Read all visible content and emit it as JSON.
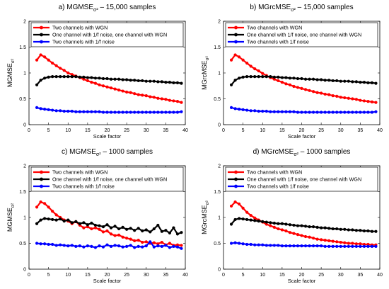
{
  "chart_data": [
    {
      "type": "line",
      "title": "a) MGMSE",
      "title_sub": "σ²",
      "title_rest": " – 15,000 samples",
      "xlabel": "Scale factor",
      "ylabel": "MGMSE",
      "ylabel_sub": "σ²",
      "xlim": [
        0,
        40
      ],
      "ylim": [
        0,
        2
      ],
      "xticks": [
        "0",
        "5",
        "10",
        "15",
        "20",
        "25",
        "30",
        "35",
        "40"
      ],
      "yticks": [
        "0",
        "0.5",
        "1",
        "1.5",
        "2"
      ],
      "legend_position": "top",
      "x": [
        2,
        3,
        4,
        5,
        6,
        7,
        8,
        9,
        10,
        11,
        12,
        13,
        14,
        15,
        16,
        17,
        18,
        19,
        20,
        21,
        22,
        23,
        24,
        25,
        26,
        27,
        28,
        29,
        30,
        31,
        32,
        33,
        34,
        35,
        36,
        37,
        38,
        39
      ],
      "series": [
        {
          "name": "Two channels with WGN",
          "color": "#ff0000",
          "values": [
            1.25,
            1.35,
            1.31,
            1.25,
            1.19,
            1.14,
            1.09,
            1.05,
            1.0,
            0.97,
            0.94,
            0.91,
            0.88,
            0.85,
            0.82,
            0.8,
            0.77,
            0.75,
            0.73,
            0.71,
            0.69,
            0.67,
            0.65,
            0.63,
            0.62,
            0.6,
            0.58,
            0.57,
            0.56,
            0.54,
            0.53,
            0.51,
            0.5,
            0.49,
            0.47,
            0.46,
            0.45,
            0.43
          ]
        },
        {
          "name": "One channel with 1/f noise, one channel with WGN",
          "color": "#000000",
          "values": [
            0.77,
            0.86,
            0.9,
            0.92,
            0.93,
            0.93,
            0.93,
            0.93,
            0.93,
            0.93,
            0.93,
            0.92,
            0.92,
            0.91,
            0.91,
            0.9,
            0.9,
            0.89,
            0.89,
            0.88,
            0.88,
            0.88,
            0.87,
            0.87,
            0.86,
            0.86,
            0.85,
            0.85,
            0.84,
            0.84,
            0.84,
            0.83,
            0.83,
            0.82,
            0.82,
            0.81,
            0.81,
            0.8
          ]
        },
        {
          "name": "Two channels with 1/f noise",
          "color": "#0000ff",
          "values": [
            0.33,
            0.31,
            0.3,
            0.29,
            0.28,
            0.27,
            0.27,
            0.26,
            0.26,
            0.26,
            0.25,
            0.25,
            0.25,
            0.25,
            0.25,
            0.25,
            0.25,
            0.24,
            0.24,
            0.24,
            0.24,
            0.24,
            0.24,
            0.24,
            0.24,
            0.24,
            0.24,
            0.24,
            0.24,
            0.24,
            0.24,
            0.24,
            0.24,
            0.24,
            0.24,
            0.24,
            0.24,
            0.25
          ]
        }
      ]
    },
    {
      "type": "line",
      "title": "b) MGrcMSE",
      "title_sub": "σ²",
      "title_rest": " – 15,000 samples",
      "xlabel": "Scale factor",
      "ylabel": "MGrcMSE",
      "ylabel_sub": "σ²",
      "xlim": [
        0,
        40
      ],
      "ylim": [
        0,
        2
      ],
      "xticks": [
        "0",
        "5",
        "10",
        "15",
        "20",
        "25",
        "30",
        "35",
        "40"
      ],
      "yticks": [
        "0",
        "0.5",
        "1",
        "1.5",
        "2"
      ],
      "legend_position": "top",
      "x": [
        2,
        3,
        4,
        5,
        6,
        7,
        8,
        9,
        10,
        11,
        12,
        13,
        14,
        15,
        16,
        17,
        18,
        19,
        20,
        21,
        22,
        23,
        24,
        25,
        26,
        27,
        28,
        29,
        30,
        31,
        32,
        33,
        34,
        35,
        36,
        37,
        38,
        39
      ],
      "series": [
        {
          "name": "Two channels with WGN",
          "color": "#ff0000",
          "values": [
            1.25,
            1.35,
            1.31,
            1.25,
            1.19,
            1.13,
            1.08,
            1.04,
            0.99,
            0.95,
            0.91,
            0.88,
            0.85,
            0.82,
            0.79,
            0.77,
            0.74,
            0.72,
            0.7,
            0.68,
            0.66,
            0.64,
            0.62,
            0.61,
            0.59,
            0.58,
            0.56,
            0.55,
            0.53,
            0.52,
            0.51,
            0.5,
            0.49,
            0.47,
            0.46,
            0.45,
            0.44,
            0.43
          ]
        },
        {
          "name": "One channel with 1/f noise, one channel with WGN",
          "color": "#000000",
          "values": [
            0.77,
            0.86,
            0.9,
            0.92,
            0.93,
            0.93,
            0.93,
            0.93,
            0.93,
            0.93,
            0.93,
            0.92,
            0.92,
            0.91,
            0.91,
            0.9,
            0.9,
            0.89,
            0.89,
            0.88,
            0.88,
            0.88,
            0.87,
            0.87,
            0.86,
            0.86,
            0.85,
            0.85,
            0.84,
            0.84,
            0.84,
            0.83,
            0.83,
            0.82,
            0.82,
            0.81,
            0.81,
            0.8
          ]
        },
        {
          "name": "Two channels with 1/f noise",
          "color": "#0000ff",
          "values": [
            0.33,
            0.31,
            0.3,
            0.29,
            0.28,
            0.27,
            0.27,
            0.26,
            0.26,
            0.26,
            0.25,
            0.25,
            0.25,
            0.25,
            0.25,
            0.25,
            0.25,
            0.24,
            0.24,
            0.24,
            0.24,
            0.24,
            0.24,
            0.24,
            0.24,
            0.24,
            0.24,
            0.24,
            0.24,
            0.24,
            0.24,
            0.24,
            0.24,
            0.24,
            0.24,
            0.24,
            0.24,
            0.25
          ]
        }
      ]
    },
    {
      "type": "line",
      "title": "c) MGMSE",
      "title_sub": "σ²",
      "title_rest": " – 1000 samples",
      "xlabel": "Scale factor",
      "ylabel": "MGMSE",
      "ylabel_sub": "σ²",
      "xlim": [
        0,
        40
      ],
      "ylim": [
        0,
        2
      ],
      "xticks": [
        "0",
        "5",
        "10",
        "15",
        "20",
        "25",
        "30",
        "35",
        "40"
      ],
      "yticks": [
        "0",
        "0.5",
        "1",
        "1.5",
        "2"
      ],
      "legend_position": "top",
      "x": [
        2,
        3,
        4,
        5,
        6,
        7,
        8,
        9,
        10,
        11,
        12,
        13,
        14,
        15,
        16,
        17,
        18,
        19,
        20,
        21,
        22,
        23,
        24,
        25,
        26,
        27,
        28,
        29,
        30,
        31,
        32,
        33,
        34,
        35,
        36,
        37,
        38,
        39
      ],
      "series": [
        {
          "name": "Two channels with WGN",
          "color": "#ff0000",
          "values": [
            1.2,
            1.3,
            1.27,
            1.2,
            1.12,
            1.05,
            1.0,
            0.95,
            0.93,
            0.88,
            0.92,
            0.85,
            0.8,
            0.82,
            0.78,
            0.8,
            0.77,
            0.72,
            0.74,
            0.68,
            0.65,
            0.66,
            0.62,
            0.6,
            0.58,
            0.55,
            0.56,
            0.52,
            0.53,
            0.5,
            0.51,
            0.49,
            0.52,
            0.47,
            0.5,
            0.46,
            0.47,
            0.46
          ]
        },
        {
          "name": "One channel with 1/f noise, one channel with WGN",
          "color": "#000000",
          "values": [
            0.88,
            0.95,
            0.98,
            0.97,
            0.96,
            0.95,
            0.97,
            0.93,
            0.95,
            0.9,
            0.92,
            0.88,
            0.9,
            0.86,
            0.89,
            0.85,
            0.84,
            0.82,
            0.86,
            0.8,
            0.83,
            0.78,
            0.81,
            0.77,
            0.79,
            0.75,
            0.79,
            0.74,
            0.76,
            0.72,
            0.78,
            0.85,
            0.73,
            0.75,
            0.7,
            0.8,
            0.68,
            0.71
          ]
        },
        {
          "name": "Two channels with 1/f noise",
          "color": "#0000ff",
          "values": [
            0.5,
            0.49,
            0.49,
            0.48,
            0.48,
            0.46,
            0.47,
            0.46,
            0.45,
            0.46,
            0.44,
            0.45,
            0.43,
            0.45,
            0.44,
            0.42,
            0.45,
            0.43,
            0.47,
            0.44,
            0.46,
            0.45,
            0.43,
            0.44,
            0.46,
            0.42,
            0.44,
            0.43,
            0.45,
            0.53,
            0.43,
            0.45,
            0.44,
            0.46,
            0.42,
            0.44,
            0.43,
            0.4
          ]
        }
      ]
    },
    {
      "type": "line",
      "title": "d) MGrcMSE",
      "title_sub": "σ²",
      "title_rest": " – 1000 samples",
      "xlabel": "Scale factor",
      "ylabel": "MGrcMSE",
      "ylabel_sub": "σ²",
      "xlim": [
        0,
        40
      ],
      "ylim": [
        0,
        2
      ],
      "xticks": [
        "0",
        "5",
        "10",
        "15",
        "20",
        "25",
        "30",
        "35",
        "40"
      ],
      "yticks": [
        "0",
        "0.5",
        "1",
        "1.5",
        "2"
      ],
      "legend_position": "top",
      "x": [
        2,
        3,
        4,
        5,
        6,
        7,
        8,
        9,
        10,
        11,
        12,
        13,
        14,
        15,
        16,
        17,
        18,
        19,
        20,
        21,
        22,
        23,
        24,
        25,
        26,
        27,
        28,
        29,
        30,
        31,
        32,
        33,
        34,
        35,
        36,
        37,
        38,
        39
      ],
      "series": [
        {
          "name": "Two channels with WGN",
          "color": "#ff0000",
          "values": [
            1.22,
            1.3,
            1.26,
            1.18,
            1.1,
            1.04,
            0.99,
            0.95,
            0.91,
            0.87,
            0.84,
            0.81,
            0.78,
            0.76,
            0.74,
            0.71,
            0.69,
            0.67,
            0.65,
            0.63,
            0.62,
            0.6,
            0.58,
            0.57,
            0.56,
            0.55,
            0.54,
            0.53,
            0.52,
            0.51,
            0.5,
            0.5,
            0.49,
            0.49,
            0.48,
            0.48,
            0.47,
            0.47
          ]
        },
        {
          "name": "One channel with 1/f noise, one channel with WGN",
          "color": "#000000",
          "values": [
            0.87,
            0.96,
            0.98,
            0.97,
            0.96,
            0.95,
            0.94,
            0.93,
            0.92,
            0.91,
            0.9,
            0.89,
            0.88,
            0.88,
            0.87,
            0.86,
            0.85,
            0.84,
            0.84,
            0.83,
            0.82,
            0.82,
            0.81,
            0.8,
            0.8,
            0.79,
            0.78,
            0.78,
            0.77,
            0.77,
            0.76,
            0.76,
            0.75,
            0.75,
            0.74,
            0.74,
            0.73,
            0.73
          ]
        },
        {
          "name": "Two channels with 1/f noise",
          "color": "#0000ff",
          "values": [
            0.5,
            0.51,
            0.5,
            0.49,
            0.48,
            0.48,
            0.47,
            0.47,
            0.47,
            0.46,
            0.46,
            0.46,
            0.46,
            0.45,
            0.45,
            0.45,
            0.45,
            0.45,
            0.45,
            0.45,
            0.45,
            0.45,
            0.45,
            0.45,
            0.44,
            0.44,
            0.44,
            0.44,
            0.44,
            0.44,
            0.44,
            0.44,
            0.44,
            0.44,
            0.44,
            0.44,
            0.44,
            0.44
          ]
        }
      ]
    }
  ]
}
